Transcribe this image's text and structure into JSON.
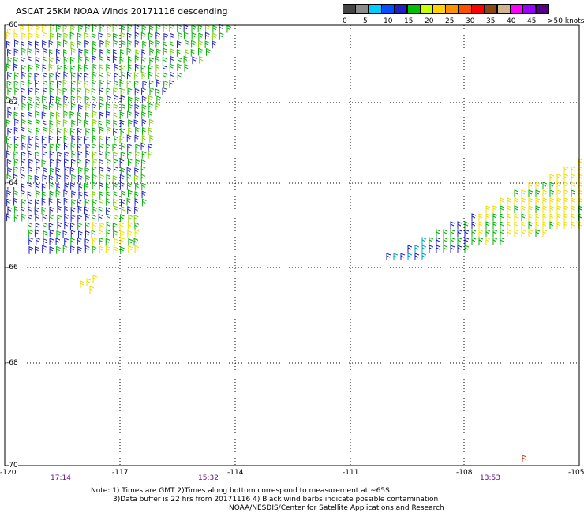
{
  "title": "ASCAT 25KM NOAA Winds 20171116 descending",
  "legend": {
    "colors": [
      "#444444",
      "#8c8c8c",
      "#00ccff",
      "#0050ff",
      "#2020c0",
      "#00c000",
      "#c8ff00",
      "#ffd200",
      "#ff9000",
      "#ff5000",
      "#ff0000",
      "#8b4513",
      "#d2b48c",
      "#ff00ff",
      "#9900ff",
      "#550088"
    ],
    "tick_labels": [
      "0",
      "5",
      "10",
      "15",
      "20",
      "25",
      "30",
      "35",
      "40",
      "45",
      ">50 knots"
    ]
  },
  "axes": {
    "lon_labels": [
      "-120",
      "-117",
      "-114",
      "-111",
      "-108",
      "-105"
    ],
    "lat_labels": [
      "-60",
      "-62",
      "-64",
      "-66",
      "-68",
      "-70"
    ],
    "lon_range": [
      -120,
      -105
    ],
    "lat_range": [
      -60,
      -70
    ]
  },
  "times": [
    "17:14",
    "15:32",
    "13:53"
  ],
  "notes": {
    "line1": "Note: 1) Times are GMT 2)Times along bottom correspond to measurement at ~65S",
    "line2": "3)Data buffer is 22 hrs from 20171116 4) Black wind barbs indicate possible contamination",
    "line3": "NOAA/NESDIS/Center for Satellite Applications and Research"
  }
}
